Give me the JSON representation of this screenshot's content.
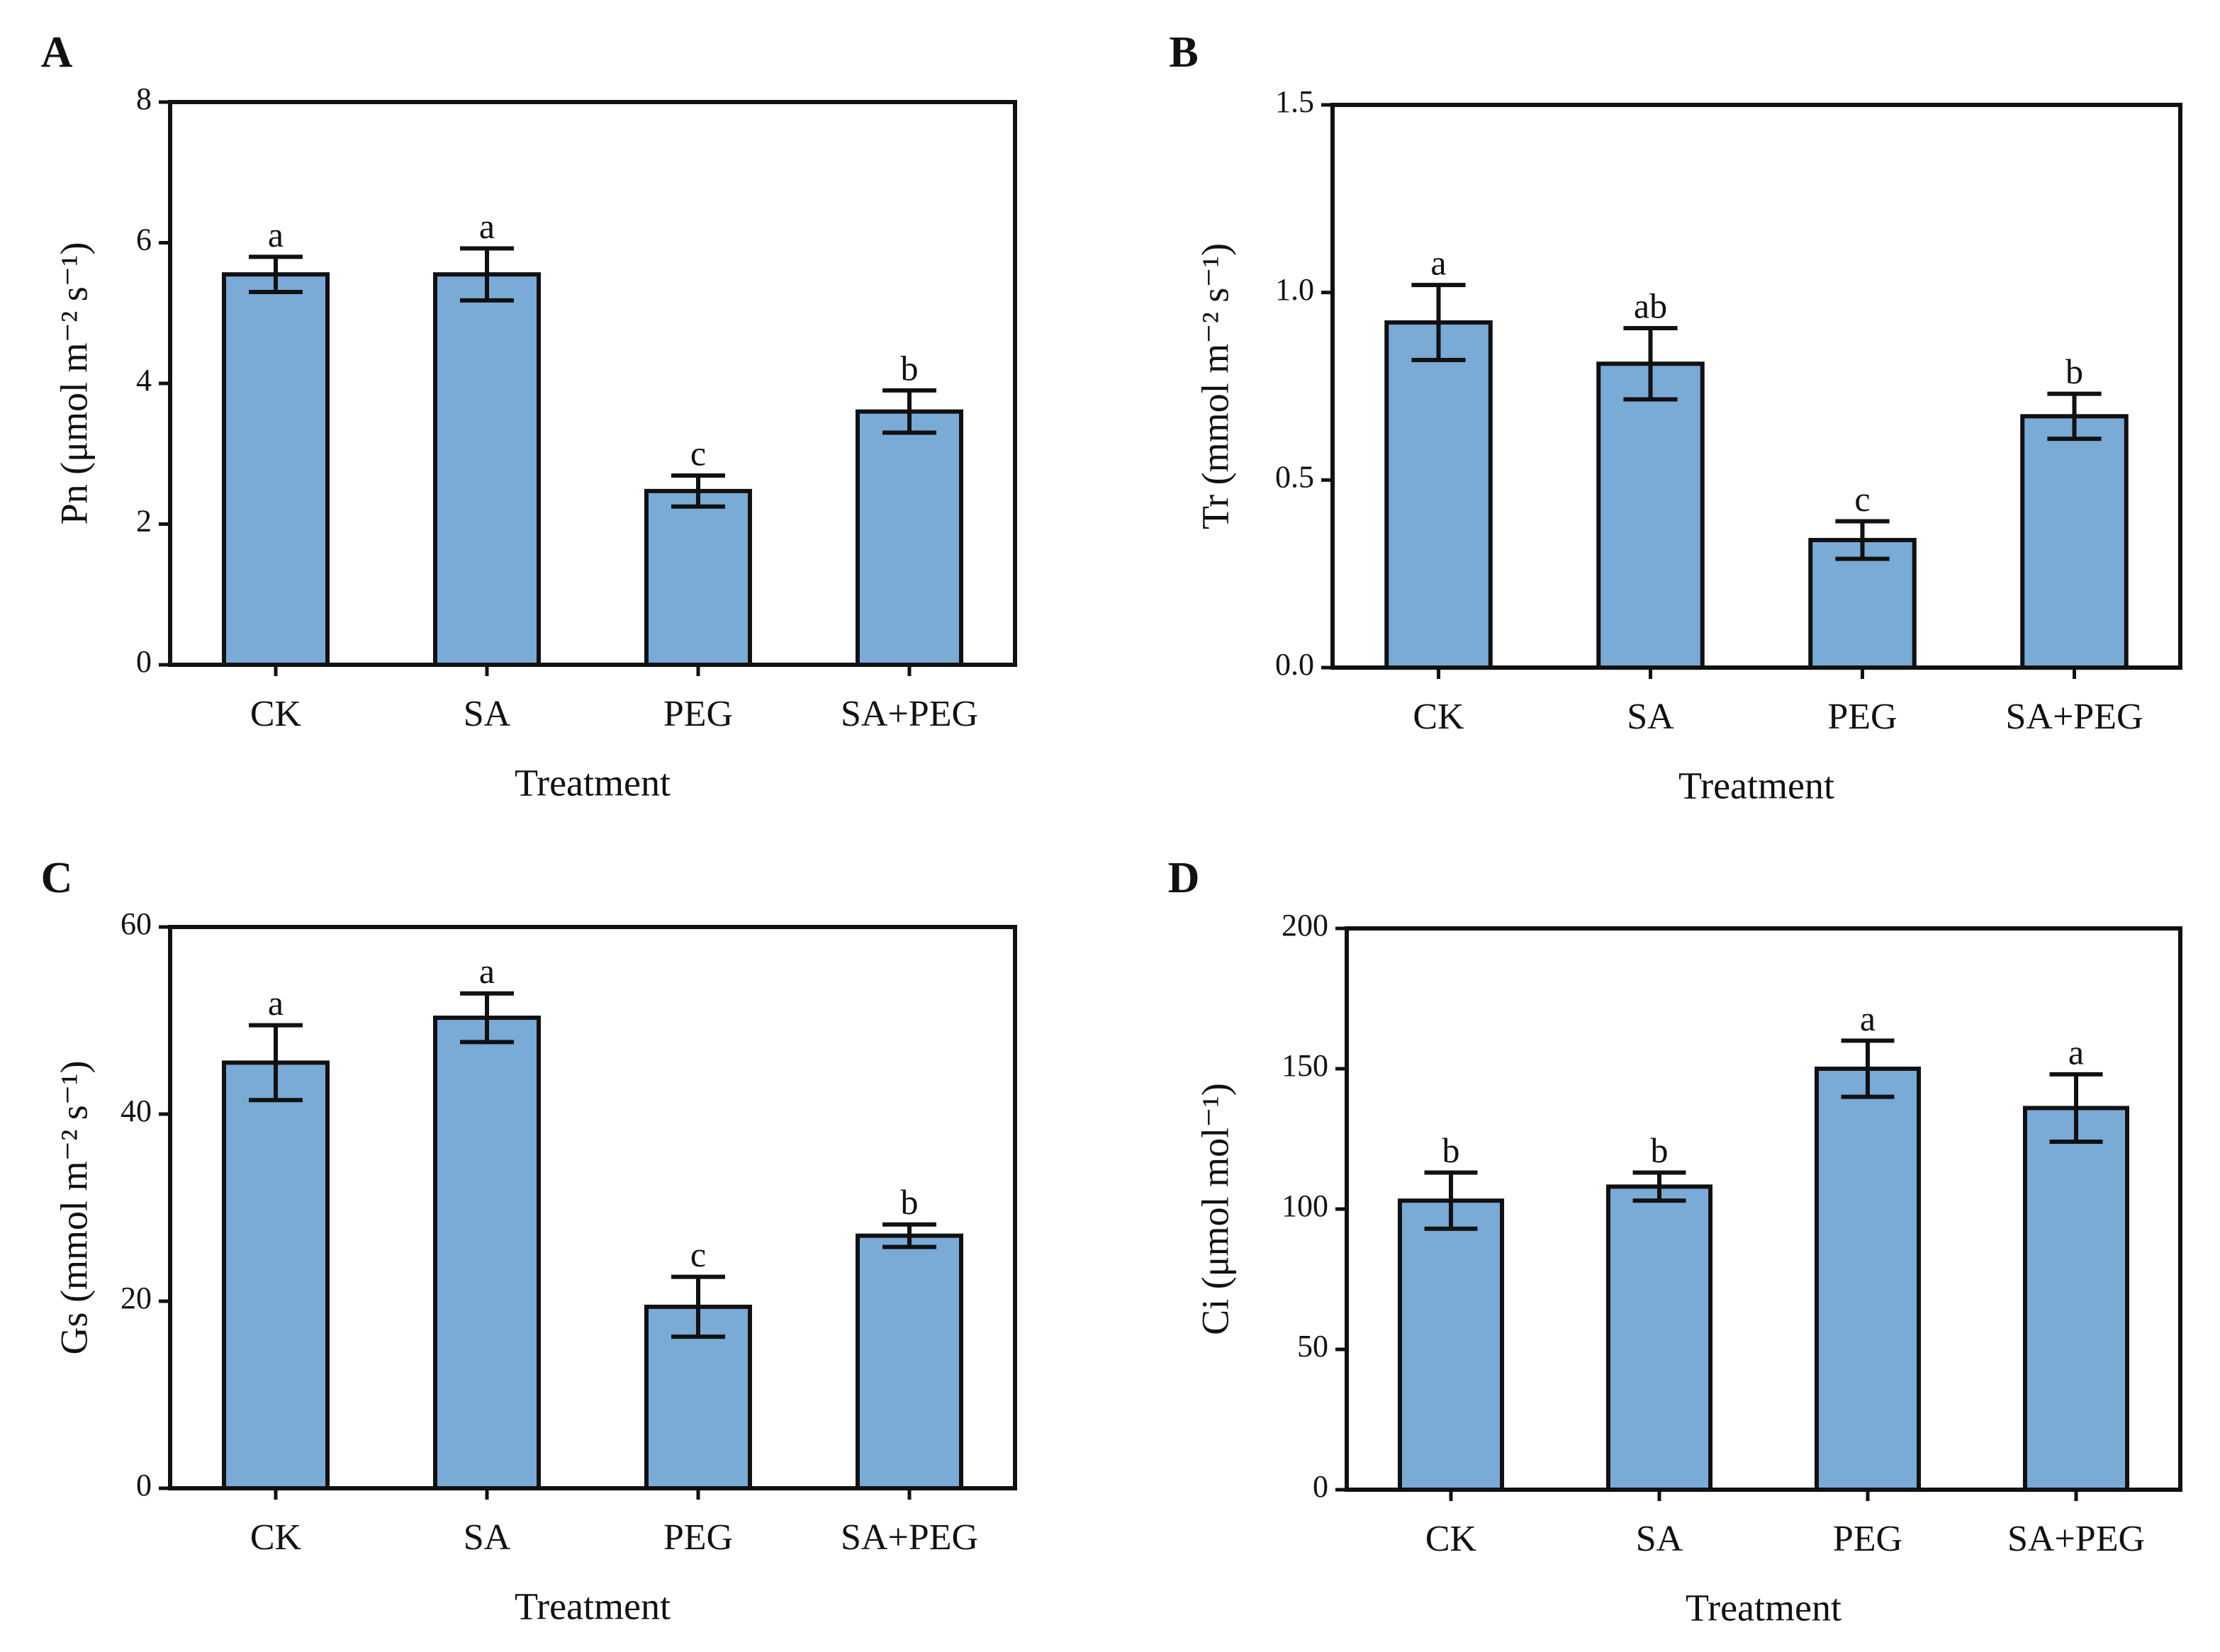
{
  "chart_data": [
    {
      "type": "bar",
      "panel_label": "A",
      "ylabel": "Pn (μmol m⁻² s⁻¹)",
      "xlabel": "Treatment",
      "categories": [
        "CK",
        "SA",
        "PEG",
        "SA+PEG"
      ],
      "values": [
        5.55,
        5.55,
        2.47,
        3.6
      ],
      "errors": [
        0.25,
        0.37,
        0.22,
        0.3
      ],
      "annotations": [
        "a",
        "a",
        "c",
        "b"
      ],
      "color": "#7aaad6",
      "ylim": [
        0,
        8
      ],
      "yticks": [
        0,
        2,
        4,
        6,
        8
      ]
    },
    {
      "type": "bar",
      "panel_label": "B",
      "ylabel": "Tr (mmol m⁻² s⁻¹)",
      "xlabel": "Treatment",
      "categories": [
        "CK",
        "SA",
        "PEG",
        "SA+PEG"
      ],
      "values": [
        0.92,
        0.81,
        0.34,
        0.67
      ],
      "errors": [
        0.1,
        0.095,
        0.05,
        0.06
      ],
      "annotations": [
        "a",
        "ab",
        "c",
        "b"
      ],
      "color": "#7aaad6",
      "ylim": [
        0,
        1.5
      ],
      "yticks": [
        {
          "value": 0,
          "label": "0.0"
        },
        0.5,
        {
          "value": 1,
          "label": "1.0"
        },
        1.5
      ]
    },
    {
      "type": "bar",
      "panel_label": "C",
      "ylabel": "Gs (mmol m⁻² s⁻¹)",
      "xlabel": "Treatment",
      "categories": [
        "CK",
        "SA",
        "PEG",
        "SA+PEG"
      ],
      "values": [
        45.5,
        50.3,
        19.4,
        27
      ],
      "errors": [
        4,
        2.6,
        3.2,
        1.2
      ],
      "annotations": [
        "a",
        "a",
        "c",
        "b"
      ],
      "color": "#7aaad6",
      "ylim": [
        0,
        60
      ],
      "yticks": [
        0,
        20,
        40,
        60
      ]
    },
    {
      "type": "bar",
      "panel_label": "D",
      "ylabel": "Ci (μmol mol⁻¹)",
      "xlabel": "Treatment",
      "categories": [
        "CK",
        "SA",
        "PEG",
        "SA+PEG"
      ],
      "values": [
        103,
        108,
        150,
        136
      ],
      "errors": [
        10,
        5,
        10,
        12
      ],
      "annotations": [
        "b",
        "b",
        "a",
        "a"
      ],
      "color": "#7aaad6",
      "ylim": [
        0,
        200
      ],
      "yticks": [
        0,
        50,
        100,
        150,
        200
      ]
    }
  ]
}
